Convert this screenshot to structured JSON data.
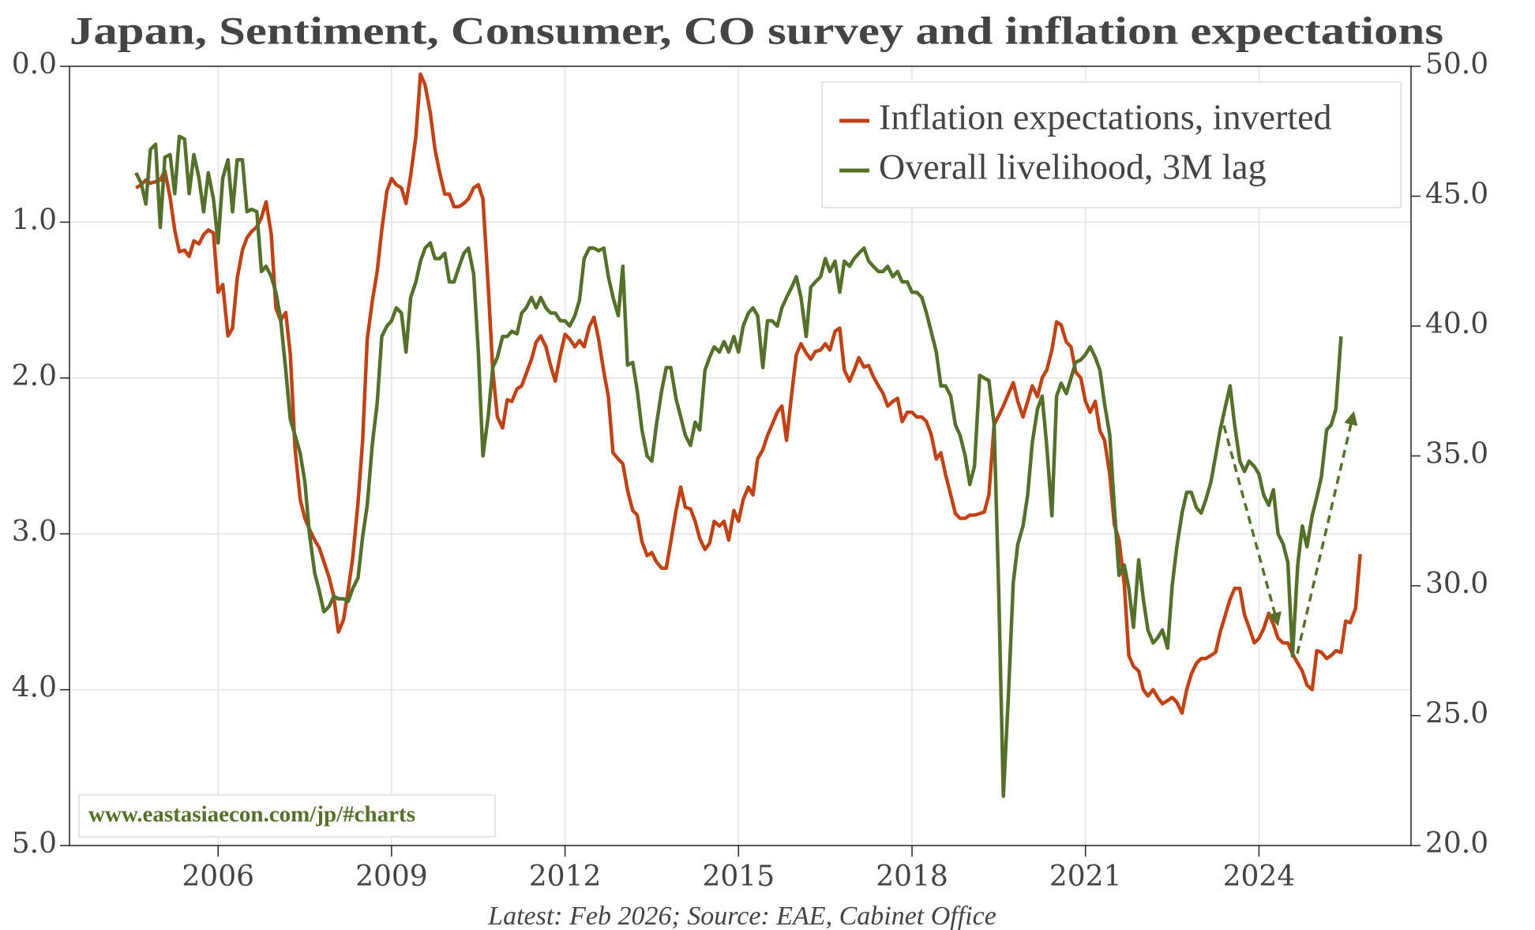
{
  "chart_data": {
    "type": "line",
    "title": "Japan, Sentiment, Consumer, CO survey and inflation expectations",
    "source": "Latest: Feb 2026; Source: EAE, Cabinet Office",
    "watermark": "www.eastasiaecon.com/jp/#charts",
    "legend": "upper right",
    "grid": true,
    "y_inverted": true,
    "xlim": [
      2003.43,
      2026.63
    ],
    "xticks": [
      2006,
      2009,
      2012,
      2015,
      2018,
      2021,
      2024
    ],
    "ylim": [
      0,
      5
    ],
    "yticks": [
      {
        "value": 0,
        "label": "0.0"
      },
      {
        "value": 1,
        "label": "1.0"
      },
      {
        "value": 2,
        "label": "2.0"
      },
      {
        "value": 3,
        "label": "3.0"
      },
      {
        "value": 4,
        "label": "4.0"
      },
      {
        "value": 5,
        "label": "5.0"
      }
    ],
    "y2lim": [
      20,
      50
    ],
    "y2ticks": [
      {
        "value": 20,
        "label": "20.0"
      },
      {
        "value": 25,
        "label": "25.0"
      },
      {
        "value": 30,
        "label": "30.0"
      },
      {
        "value": 35,
        "label": "35.0"
      },
      {
        "value": 40,
        "label": "40.0"
      },
      {
        "value": 45,
        "label": "45.0"
      },
      {
        "value": 50,
        "label": "50.0"
      }
    ],
    "x": [
      2004.58,
      2004.67,
      2004.75,
      2004.83,
      2004.92,
      2005,
      2005.08,
      2005.17,
      2005.25,
      2005.33,
      2005.42,
      2005.5,
      2005.58,
      2005.67,
      2005.75,
      2005.83,
      2005.92,
      2006,
      2006.08,
      2006.17,
      2006.25,
      2006.33,
      2006.42,
      2006.5,
      2006.58,
      2006.67,
      2006.75,
      2006.83,
      2006.92,
      2007,
      2007.08,
      2007.17,
      2007.25,
      2007.33,
      2007.42,
      2007.5,
      2007.58,
      2007.67,
      2007.75,
      2007.83,
      2007.92,
      2008,
      2008.08,
      2008.17,
      2008.25,
      2008.33,
      2008.42,
      2008.5,
      2008.58,
      2008.67,
      2008.75,
      2008.83,
      2008.92,
      2009,
      2009.08,
      2009.17,
      2009.25,
      2009.33,
      2009.42,
      2009.5,
      2009.58,
      2009.67,
      2009.75,
      2009.83,
      2009.92,
      2010,
      2010.08,
      2010.17,
      2010.25,
      2010.33,
      2010.42,
      2010.5,
      2010.58,
      2010.67,
      2010.75,
      2010.83,
      2010.92,
      2011,
      2011.08,
      2011.17,
      2011.25,
      2011.33,
      2011.42,
      2011.5,
      2011.58,
      2011.67,
      2011.75,
      2011.83,
      2011.92,
      2012,
      2012.08,
      2012.17,
      2012.25,
      2012.33,
      2012.42,
      2012.5,
      2012.58,
      2012.67,
      2012.75,
      2012.83,
      2012.92,
      2013,
      2013.08,
      2013.17,
      2013.25,
      2013.33,
      2013.42,
      2013.5,
      2013.58,
      2013.67,
      2013.75,
      2013.83,
      2013.92,
      2014,
      2014.08,
      2014.17,
      2014.25,
      2014.33,
      2014.42,
      2014.5,
      2014.58,
      2014.67,
      2014.75,
      2014.83,
      2014.92,
      2015,
      2015.08,
      2015.17,
      2015.25,
      2015.33,
      2015.42,
      2015.5,
      2015.58,
      2015.67,
      2015.75,
      2015.83,
      2015.92,
      2016,
      2016.08,
      2016.17,
      2016.25,
      2016.33,
      2016.42,
      2016.5,
      2016.58,
      2016.67,
      2016.75,
      2016.83,
      2016.92,
      2017,
      2017.08,
      2017.17,
      2017.25,
      2017.33,
      2017.42,
      2017.5,
      2017.58,
      2017.67,
      2017.75,
      2017.83,
      2017.92,
      2018,
      2018.08,
      2018.17,
      2018.25,
      2018.33,
      2018.42,
      2018.5,
      2018.58,
      2018.67,
      2018.75,
      2018.83,
      2018.92,
      2019,
      2019.08,
      2019.17,
      2019.25,
      2019.33,
      2019.42,
      2019.5,
      2019.58,
      2019.67,
      2019.75,
      2019.83,
      2019.92,
      2020,
      2020.08,
      2020.17,
      2020.25,
      2020.33,
      2020.42,
      2020.5,
      2020.58,
      2020.67,
      2020.75,
      2020.83,
      2020.92,
      2021,
      2021.08,
      2021.17,
      2021.25,
      2021.33,
      2021.42,
      2021.5,
      2021.58,
      2021.67,
      2021.75,
      2021.83,
      2021.92,
      2022,
      2022.08,
      2022.17,
      2022.25,
      2022.33,
      2022.42,
      2022.5,
      2022.58,
      2022.67,
      2022.75,
      2022.83,
      2022.92,
      2023,
      2023.08,
      2023.17,
      2023.25,
      2023.33,
      2023.42,
      2023.5,
      2023.58,
      2023.67,
      2023.75,
      2023.83,
      2023.92,
      2024,
      2024.08,
      2024.17,
      2024.25,
      2024.33,
      2024.42,
      2024.5,
      2024.58,
      2024.67,
      2024.75,
      2024.83,
      2024.92,
      2025,
      2025.08,
      2025.17,
      2025.25,
      2025.33,
      2025.42,
      2025.5,
      2025.58,
      2025.67,
      2025.75
    ],
    "series": [
      {
        "name": "Inflation expectations, inverted",
        "color": "#bf4316",
        "axis": "y",
        "values": [
          0.78,
          0.76,
          0.73,
          0.75,
          0.74,
          0.73,
          0.67,
          0.84,
          1.05,
          1.19,
          1.18,
          1.22,
          1.12,
          1.14,
          1.08,
          1.05,
          1.07,
          1.45,
          1.4,
          1.73,
          1.68,
          1.36,
          1.18,
          1.1,
          1.06,
          1.03,
          0.97,
          0.87,
          1.08,
          1.55,
          1.63,
          1.58,
          1.85,
          2.45,
          2.78,
          2.9,
          2.97,
          3.04,
          3.09,
          3.18,
          3.28,
          3.4,
          3.63,
          3.55,
          3.36,
          3.15,
          2.8,
          2.4,
          1.75,
          1.5,
          1.32,
          1.05,
          0.8,
          0.72,
          0.76,
          0.78,
          0.88,
          0.7,
          0.45,
          0.05,
          0.12,
          0.3,
          0.53,
          0.68,
          0.82,
          0.82,
          0.9,
          0.9,
          0.88,
          0.85,
          0.78,
          0.76,
          0.85,
          1.4,
          1.95,
          2.25,
          2.32,
          2.14,
          2.15,
          2.07,
          2.05,
          1.97,
          1.88,
          1.77,
          1.73,
          1.8,
          1.92,
          2.02,
          1.85,
          1.72,
          1.75,
          1.8,
          1.76,
          1.8,
          1.67,
          1.61,
          1.75,
          1.96,
          2.12,
          2.48,
          2.52,
          2.55,
          2.72,
          2.85,
          2.88,
          3.05,
          3.14,
          3.12,
          3.18,
          3.22,
          3.22,
          3.05,
          2.85,
          2.7,
          2.83,
          2.84,
          2.92,
          3.03,
          3.1,
          3.06,
          2.92,
          2.95,
          2.92,
          3.04,
          2.85,
          2.92,
          2.78,
          2.7,
          2.75,
          2.52,
          2.46,
          2.37,
          2.3,
          2.22,
          2.18,
          2.4,
          2.1,
          1.85,
          1.78,
          1.84,
          1.88,
          1.83,
          1.82,
          1.78,
          1.82,
          1.7,
          1.68,
          1.95,
          2.02,
          1.95,
          1.87,
          1.93,
          1.92,
          1.99,
          2.05,
          2.1,
          2.18,
          2.15,
          2.13,
          2.28,
          2.22,
          2.22,
          2.25,
          2.25,
          2.28,
          2.36,
          2.52,
          2.48,
          2.62,
          2.75,
          2.87,
          2.9,
          2.9,
          2.88,
          2.88,
          2.87,
          2.86,
          2.75,
          2.3,
          2.24,
          2.18,
          2.1,
          2.03,
          2.15,
          2.25,
          2.15,
          2.05,
          2.12,
          2.0,
          1.95,
          1.82,
          1.64,
          1.66,
          1.77,
          1.8,
          1.96,
          2.0,
          2.15,
          2.22,
          2.15,
          2.34,
          2.4,
          2.62,
          2.94,
          3.04,
          3.32,
          3.78,
          3.85,
          3.88,
          4.0,
          4.04,
          4.0,
          4.05,
          4.09,
          4.07,
          4.05,
          4.08,
          4.15,
          4.0,
          3.9,
          3.83,
          3.8,
          3.8,
          3.78,
          3.76,
          3.63,
          3.52,
          3.42,
          3.35,
          3.35,
          3.52,
          3.6,
          3.7,
          3.67,
          3.61,
          3.51,
          3.58,
          3.67,
          3.7,
          3.7,
          3.77,
          3.83,
          3.88,
          3.97,
          4.0,
          3.75,
          3.76,
          3.8,
          3.78,
          3.75,
          3.76,
          3.56,
          3.57,
          3.48,
          3.13
        ]
      },
      {
        "name": "Overall livelihood, 3M lag",
        "color": "#55702a",
        "axis": "y2",
        "values": [
          45.9,
          45.5,
          44.7,
          46.8,
          47.0,
          43.8,
          46.5,
          46.6,
          45.1,
          47.3,
          47.2,
          45.1,
          46.6,
          45.7,
          44.4,
          45.9,
          44.9,
          43.2,
          45.7,
          46.4,
          44.4,
          46.4,
          46.4,
          44.4,
          44.5,
          44.4,
          42.1,
          42.3,
          41.9,
          41.3,
          40.3,
          38.3,
          36.4,
          35.8,
          35.1,
          34.0,
          32.0,
          30.5,
          29.8,
          29.0,
          29.2,
          29.6,
          29.5,
          29.5,
          29.4,
          29.9,
          30.3,
          31.9,
          33.1,
          35.5,
          37.0,
          39.6,
          40.0,
          40.2,
          40.7,
          40.5,
          39.0,
          41.1,
          41.7,
          42.5,
          43.0,
          43.2,
          42.6,
          42.6,
          42.8,
          41.7,
          41.7,
          42.3,
          42.8,
          43.0,
          42.0,
          39.0,
          35.0,
          36.5,
          38.4,
          38.8,
          39.6,
          39.6,
          39.8,
          39.7,
          40.5,
          40.7,
          41.1,
          40.7,
          41.1,
          40.7,
          40.5,
          40.5,
          40.2,
          40.2,
          40.0,
          40.4,
          41.0,
          42.6,
          43.0,
          43.0,
          42.9,
          43.0,
          41.9,
          41.1,
          40.4,
          42.3,
          38.5,
          38.6,
          37.5,
          36.0,
          35.0,
          34.8,
          36.2,
          37.5,
          38.4,
          38.4,
          37.2,
          36.5,
          35.8,
          35.4,
          36.3,
          36.0,
          38.3,
          38.8,
          39.2,
          39.0,
          39.4,
          39.0,
          39.6,
          39.0,
          40.0,
          40.5,
          40.7,
          40.4,
          38.4,
          40.2,
          40.2,
          40.0,
          40.7,
          41.1,
          41.5,
          41.9,
          41.1,
          39.6,
          41.5,
          41.7,
          41.9,
          42.6,
          42.1,
          42.5,
          41.3,
          42.5,
          42.3,
          42.6,
          42.8,
          43.0,
          42.5,
          42.3,
          42.1,
          42.1,
          42.3,
          41.9,
          42.1,
          41.7,
          41.7,
          41.3,
          41.3,
          41.1,
          40.5,
          39.8,
          39.0,
          37.7,
          37.7,
          37.3,
          36.2,
          35.8,
          35.0,
          33.9,
          34.6,
          38.1,
          38.0,
          37.9,
          36.2,
          29.7,
          21.9,
          25.9,
          30.1,
          31.6,
          32.3,
          33.5,
          35.5,
          36.8,
          37.3,
          35.4,
          32.7,
          37.3,
          37.8,
          37.4,
          38.0,
          38.6,
          38.7,
          38.9,
          39.2,
          38.8,
          38.3,
          37.0,
          35.8,
          33.0,
          30.4,
          30.8,
          29.9,
          28.4,
          31.0,
          29.5,
          28.3,
          27.8,
          28.0,
          28.3,
          27.6,
          30.0,
          31.5,
          32.8,
          33.6,
          33.6,
          33.0,
          32.8,
          33.3,
          34.0,
          35.0,
          36.0,
          36.9,
          37.7,
          36.2,
          34.8,
          34.4,
          34.8,
          34.6,
          34.3,
          33.5,
          33.1,
          33.7,
          32.0,
          31.6,
          30.9,
          27.3,
          30.8,
          32.3,
          31.5,
          32.7,
          33.4,
          34.2,
          36.0,
          36.2,
          36.8,
          39.6,
          null,
          null,
          null,
          null
        ]
      }
    ]
  }
}
